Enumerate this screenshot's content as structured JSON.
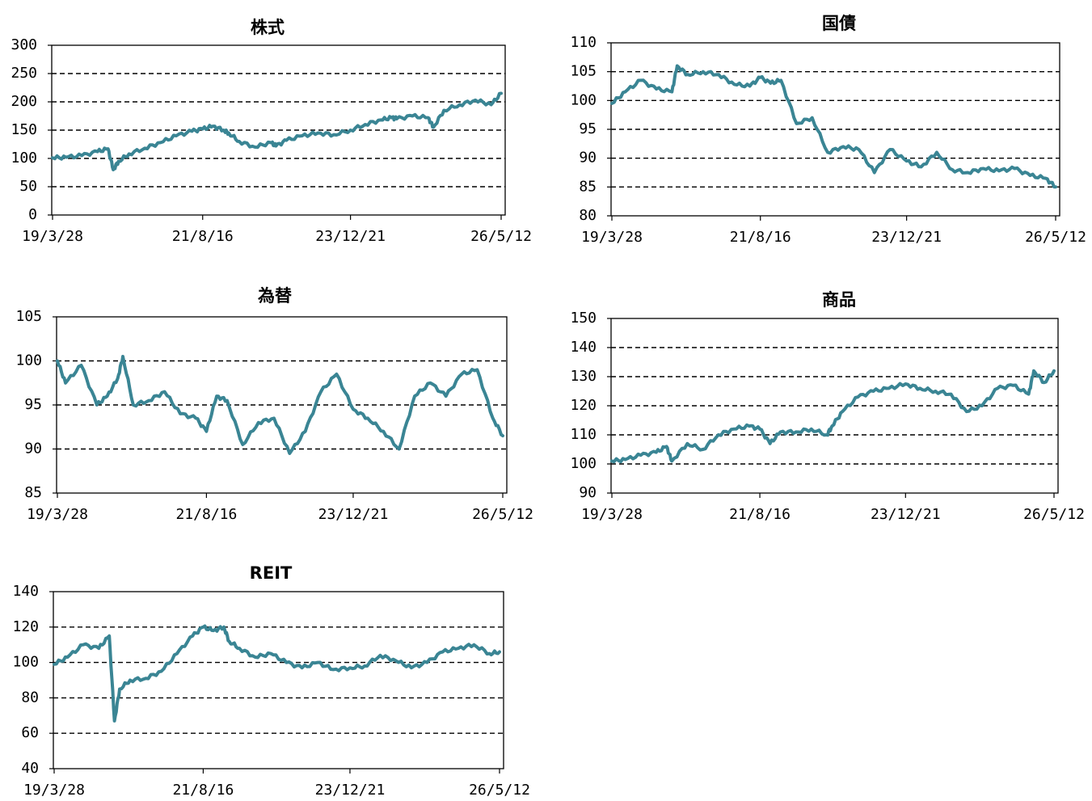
{
  "chart_data": [
    {
      "type": "line",
      "title": "株式",
      "ylim": [
        0,
        300
      ],
      "yticks": [
        0,
        50,
        100,
        150,
        200,
        250,
        300
      ],
      "xticks": [
        "19/3/28",
        "21/8/16",
        "23/12/21",
        "26/5/12"
      ],
      "grid": "horizontal-dashed",
      "line_color": "#3a8594",
      "series": [
        {
          "x": [
            "19/3/28",
            "19/6",
            "19/9",
            "19/12",
            "20/2",
            "20/3",
            "20/4",
            "20/6",
            "20/9",
            "20/12",
            "21/3",
            "21/6",
            "21/8/16",
            "21/10",
            "21/12",
            "22/1",
            "22/3",
            "22/6",
            "22/9",
            "22/10",
            "22/12",
            "23/3",
            "23/6",
            "23/9",
            "23/12/21",
            "24/3",
            "24/6",
            "24/8",
            "24/9",
            "24/12",
            "25/3",
            "25/4",
            "25/6",
            "25/9",
            "25/12",
            "26/3",
            "26/5/12"
          ],
          "values": [
            101,
            102,
            105,
            112,
            117,
            80,
            95,
            108,
            118,
            128,
            140,
            148,
            152,
            157,
            150,
            145,
            130,
            120,
            128,
            122,
            132,
            140,
            145,
            142,
            150,
            160,
            168,
            172,
            170,
            175,
            172,
            155,
            185,
            195,
            203,
            195,
            215
          ]
        }
      ]
    },
    {
      "type": "line",
      "title": "国債",
      "ylim": [
        80,
        110
      ],
      "yticks": [
        80,
        85,
        90,
        95,
        100,
        105,
        110
      ],
      "xticks": [
        "19/3/28",
        "21/8/16",
        "23/12/21",
        "26/5/12"
      ],
      "grid": "horizontal-dashed",
      "line_color": "#3a8594",
      "series": [
        {
          "x": [
            "19/3/28",
            "19/6",
            "19/9",
            "19/12",
            "20/3",
            "20/4",
            "20/6",
            "20/9",
            "20/12",
            "21/3",
            "21/6",
            "21/8/16",
            "21/10",
            "21/12",
            "22/3",
            "22/6",
            "22/9",
            "22/12",
            "23/3",
            "23/6",
            "23/9",
            "23/12/21",
            "24/3",
            "24/6",
            "24/9",
            "24/12",
            "25/3",
            "25/6",
            "25/9",
            "25/12",
            "26/3",
            "26/5/12"
          ],
          "values": [
            99.5,
            101.5,
            103.5,
            102,
            101.5,
            106,
            104.5,
            105,
            104.5,
            102.8,
            102.5,
            104,
            103,
            103.5,
            96,
            97,
            91,
            92,
            91.5,
            87.5,
            91.5,
            89.5,
            88.5,
            91,
            88,
            87.5,
            88.2,
            87.8,
            88.2,
            87,
            86.5,
            85
          ]
        }
      ]
    },
    {
      "type": "line",
      "title": "為替",
      "ylim": [
        85,
        105
      ],
      "yticks": [
        85,
        90,
        95,
        100,
        105
      ],
      "xticks": [
        "19/3/28",
        "21/8/16",
        "23/12/21",
        "26/5/12"
      ],
      "grid": "horizontal-dashed",
      "line_color": "#3a8594",
      "series": [
        {
          "x": [
            "19/3/28",
            "19/5",
            "19/8",
            "19/11",
            "20/1",
            "20/3",
            "20/4",
            "20/6",
            "20/9",
            "20/12",
            "21/3",
            "21/6",
            "21/8/16",
            "21/10",
            "21/12",
            "22/3",
            "22/6",
            "22/9",
            "22/12",
            "23/3",
            "23/6",
            "23/9",
            "23/12/21",
            "24/3",
            "24/6",
            "24/9",
            "24/12",
            "25/3",
            "25/6",
            "25/9",
            "25/12",
            "26/3",
            "26/5/12"
          ],
          "values": [
            100,
            97.5,
            99.5,
            95,
            96,
            98,
            100.5,
            95,
            95.5,
            96.5,
            94,
            93.5,
            92,
            96,
            95.5,
            90.5,
            93,
            93.5,
            89.5,
            92,
            96.5,
            98.5,
            94.5,
            93.5,
            92,
            90,
            96,
            97.5,
            96,
            98.5,
            99,
            93.5,
            91.5
          ]
        }
      ]
    },
    {
      "type": "line",
      "title": "商品",
      "ylim": [
        90,
        150
      ],
      "yticks": [
        90,
        100,
        110,
        120,
        130,
        140,
        150
      ],
      "xticks": [
        "19/3/28",
        "21/8/16",
        "23/12/21",
        "26/5/12"
      ],
      "grid": "horizontal-dashed",
      "line_color": "#3a8594",
      "series": [
        {
          "x": [
            "19/3/28",
            "19/6",
            "19/9",
            "19/12",
            "20/2",
            "20/3",
            "20/6",
            "20/9",
            "20/12",
            "21/3",
            "21/6",
            "21/8/16",
            "21/10",
            "21/12",
            "22/3",
            "22/6",
            "22/9",
            "22/10",
            "22/12",
            "23/3",
            "23/6",
            "23/9",
            "23/12/21",
            "24/3",
            "24/6",
            "24/9",
            "24/12",
            "25/3",
            "25/6",
            "25/9",
            "25/12",
            "26/1",
            "26/3",
            "26/5/12"
          ],
          "values": [
            101,
            101.5,
            103,
            104,
            106,
            101,
            107,
            105,
            110,
            112,
            113,
            112,
            107,
            111,
            111,
            112,
            110,
            113,
            118,
            123,
            125,
            126,
            127.5,
            126,
            125,
            124,
            118,
            120,
            126,
            127,
            124,
            132,
            128,
            132
          ]
        }
      ]
    },
    {
      "type": "line",
      "title": "REIT",
      "ylim": [
        40,
        140
      ],
      "yticks": [
        40,
        60,
        80,
        100,
        120,
        140
      ],
      "xticks": [
        "19/3/28",
        "21/8/16",
        "23/12/21",
        "26/5/12"
      ],
      "grid": "horizontal-dashed",
      "line_color": "#3a8594",
      "series": [
        {
          "x": [
            "19/3/28",
            "19/6",
            "19/9",
            "19/12",
            "20/2",
            "20/3",
            "20/4",
            "20/6",
            "20/9",
            "20/12",
            "21/3",
            "21/6",
            "21/8/16",
            "21/10",
            "21/12",
            "22/1",
            "22/3",
            "22/6",
            "22/9",
            "22/12",
            "23/3",
            "23/6",
            "23/9",
            "23/12/21",
            "24/3",
            "24/6",
            "24/9",
            "24/12",
            "25/3",
            "25/6",
            "25/9",
            "25/12",
            "26/3",
            "26/5/12"
          ],
          "values": [
            99,
            103,
            110,
            108,
            115,
            67,
            85,
            90,
            91,
            95,
            105,
            115,
            120,
            118,
            120,
            112,
            108,
            103,
            105,
            100,
            97,
            100,
            96,
            97,
            98,
            104,
            101,
            97,
            100,
            106,
            108,
            110,
            105,
            106
          ]
        }
      ]
    }
  ]
}
